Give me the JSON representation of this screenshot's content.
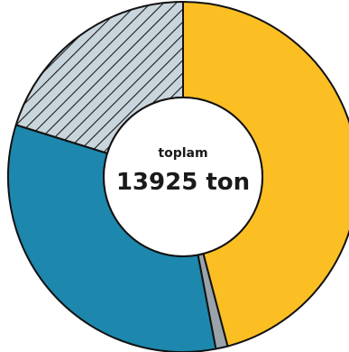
{
  "chart_data": {
    "type": "pie",
    "style": "donut",
    "center": {
      "label": "toplam",
      "value": "13925 ton"
    },
    "slices": [
      {
        "value": 0.459,
        "color": "#fbbf24",
        "pattern": "none"
      },
      {
        "value": 0.011,
        "color": "#9aa3aa",
        "pattern": "none"
      },
      {
        "value": 0.328,
        "color": "#1d87ad",
        "pattern": "none"
      },
      {
        "value": 0.202,
        "color": "#c9d5dd",
        "pattern": "diagonal-hatch"
      }
    ],
    "value_unit": "fraction of total",
    "start_angle": "12 o'clock",
    "direction": "clockwise",
    "outline_color": "#111111"
  }
}
